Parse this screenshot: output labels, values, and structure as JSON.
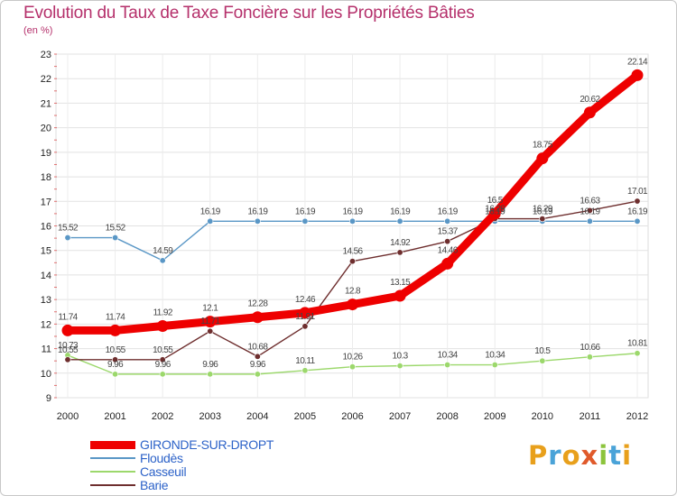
{
  "title": "Evolution du Taux de Taxe Foncière sur les Propriétés Bâties",
  "unit": "(en %)",
  "logo": {
    "letters": [
      "P",
      "r",
      "o",
      "x",
      "i",
      "t",
      "i"
    ],
    "colors": [
      "#e8a01c",
      "#4aa3d8",
      "#e8a01c",
      "#e05a2b",
      "#8cc43c",
      "#4aa3d8",
      "#e8a01c"
    ]
  },
  "chart_data": {
    "type": "line",
    "title": "Evolution du Taux de Taxe Foncière sur les Propriétés Bâties",
    "ylabel": "(en %)",
    "xlabel": "",
    "ylim": [
      9,
      23
    ],
    "yticks": [
      "9",
      "10",
      "11",
      "12",
      "13",
      "14",
      "15",
      "16",
      "17",
      "18",
      "19",
      "20",
      "21",
      "22",
      "23"
    ],
    "categories": [
      "2000",
      "2001",
      "2002",
      "2003",
      "2004",
      "2005",
      "2006",
      "2007",
      "2008",
      "2009",
      "2010",
      "2011",
      "2012"
    ],
    "legend_position": "bottom-left",
    "series": [
      {
        "name": "Floudès",
        "color": "#5a97c6",
        "width": "thin",
        "values": [
          15.52,
          15.52,
          14.59,
          16.19,
          16.19,
          16.19,
          16.19,
          16.19,
          16.19,
          16.19,
          16.19,
          16.19,
          16.19
        ],
        "labels": [
          "15.52",
          "15.52",
          "14.59",
          "16.19",
          "16.19",
          "16.19",
          "16.19",
          "16.19",
          "16.19",
          "16.19",
          "16.19",
          "16.19",
          "16.19"
        ]
      },
      {
        "name": "Casseuil",
        "color": "#9cd86c",
        "width": "thin",
        "values": [
          10.73,
          9.96,
          9.96,
          9.96,
          9.96,
          10.11,
          10.26,
          10.3,
          10.34,
          10.34,
          10.5,
          10.66,
          10.81
        ],
        "labels": [
          "10.73",
          "9.96",
          "9.96",
          "9.96",
          "9.96",
          "10.11",
          "10.26",
          "10.3",
          "10.34",
          "10.34",
          "10.5",
          "10.66",
          "10.81"
        ]
      },
      {
        "name": "Barie",
        "color": "#6e2e2e",
        "width": "thin",
        "values": [
          10.55,
          10.55,
          10.55,
          11.71,
          10.68,
          11.91,
          14.56,
          14.92,
          15.37,
          16.29,
          16.29,
          16.63,
          17.01
        ],
        "labels": [
          "10.55",
          "10.55",
          "10.55",
          "11.71",
          "10.68",
          "11.91",
          "14.56",
          "14.92",
          "15.37",
          "16.29",
          "16.29",
          "16.63",
          "17.01"
        ]
      },
      {
        "name": "GIRONDE-SUR-DROPT",
        "color": "#ee0000",
        "width": "thick",
        "values": [
          11.74,
          11.74,
          11.92,
          12.1,
          12.28,
          12.46,
          12.8,
          13.15,
          14.46,
          16.5,
          18.75,
          20.62,
          22.14
        ],
        "labels": [
          "11.74",
          "11.74",
          "11.92",
          "12.1",
          "12.28",
          "12.46",
          "12.8",
          "13.15",
          "14.46",
          "16.5",
          "18.75",
          "20.62",
          "22.14"
        ]
      }
    ],
    "legend": [
      "GIRONDE-SUR-DROPT",
      "Floudès",
      "Casseuil",
      "Barie"
    ]
  }
}
